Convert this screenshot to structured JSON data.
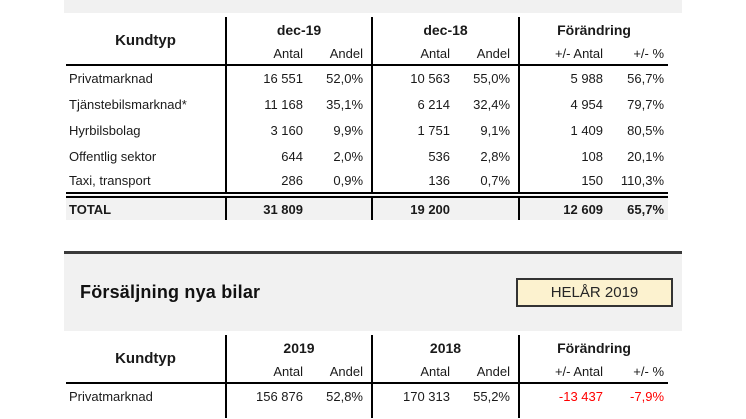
{
  "colors": {
    "panel_gray": "#f1f1f1",
    "total_row_gray": "#f2f2f2",
    "panel_top_border": "#3a3a3a",
    "badge_fill": "#fcf2cf",
    "badge_border": "#333333",
    "negative_value_red": "#ff0000",
    "table_line": "#000000"
  },
  "monthly_table": {
    "kundtyp_label": "Kundtyp",
    "groups": [
      "dec-19",
      "dec-18",
      "Förändring"
    ],
    "sub_headers": [
      "Antal",
      "Andel",
      "Antal",
      "Andel",
      "+/- Antal",
      "+/- %"
    ],
    "rows": [
      [
        "Privatmarknad",
        "16 551",
        "52,0%",
        "10 563",
        "55,0%",
        "5 988",
        "56,7%"
      ],
      [
        "Tjänstebilsmarknad*",
        "11 168",
        "35,1%",
        "6 214",
        "32,4%",
        "4 954",
        "79,7%"
      ],
      [
        "Hyrbilsbolag",
        "3 160",
        "9,9%",
        "1 751",
        "9,1%",
        "1 409",
        "80,5%"
      ],
      [
        "Offentlig sektor",
        "644",
        "2,0%",
        "536",
        "2,8%",
        "108",
        "20,1%"
      ],
      [
        "Taxi, transport",
        "286",
        "0,9%",
        "136",
        "0,7%",
        "150",
        "110,3%"
      ]
    ],
    "total_row": [
      "TOTAL",
      "31 809",
      "",
      "19 200",
      "",
      "12 609",
      "65,7%"
    ]
  },
  "sales_section": {
    "title": "Försäljning nya bilar",
    "badge_label": "HELÅR 2019"
  },
  "yearly_table": {
    "kundtyp_label": "Kundtyp",
    "groups": [
      "2019",
      "2018",
      "Förändring"
    ],
    "sub_headers": [
      "Antal",
      "Andel",
      "Antal",
      "Andel",
      "+/- Antal",
      "+/- %"
    ],
    "rows": [
      [
        "Privatmarknad",
        "156 876",
        "52,8%",
        "170 313",
        "55,2%",
        "-13 437",
        "-7,9%"
      ]
    ]
  }
}
